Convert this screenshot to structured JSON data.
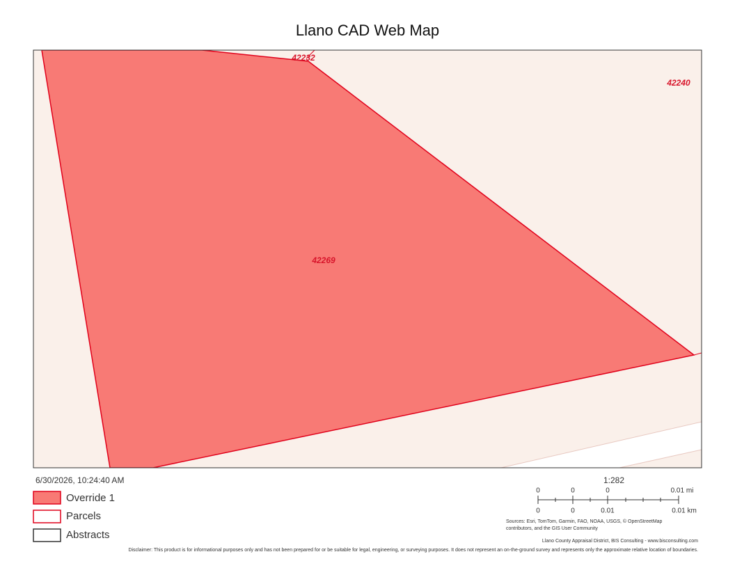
{
  "title": "Llano CAD Web Map",
  "map": {
    "labels": [
      "42232",
      "42240",
      "42269"
    ]
  },
  "date": "6/30/2026, 10:24:40 AM",
  "legend": [
    "Override 1",
    "Parcels",
    "Abstracts"
  ],
  "scale": {
    "ratio": "1:282",
    "miles": [
      "0",
      "0",
      "0",
      "0.01 mi"
    ],
    "km": [
      "0",
      "0",
      "0.01",
      "0.01 km"
    ]
  },
  "sources": [
    "Sources: Esri, TomTom, Garmin, FAO, NOAA, USGS, © OpenStreetMap",
    "contributors, and the GIS User Community"
  ],
  "attribution": "Llano County Appraisal District, BIS Consulting - www.bisconsulting.com",
  "disclaimer": "Disclaimer: This product is for informational purposes only and has not been prepared for or be suitable for legal, engineering, or surveying purposes. It does not represent an on-the-ground survey and represents only the approximate relative location of boundaries."
}
